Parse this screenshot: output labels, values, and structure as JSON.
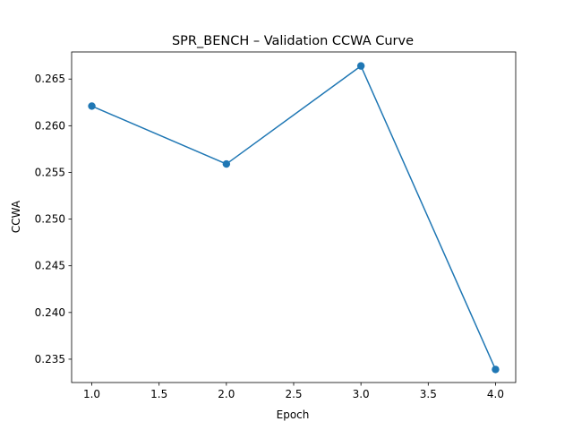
{
  "chart_data": {
    "type": "line",
    "title": "SPR_BENCH – Validation CCWA Curve",
    "xlabel": "Epoch",
    "ylabel": "CCWA",
    "xlim": [
      0.85,
      4.15
    ],
    "ylim": [
      0.2325,
      0.2679
    ],
    "x_ticks": [
      1.0,
      1.5,
      2.0,
      2.5,
      3.0,
      3.5,
      4.0
    ],
    "x_tick_labels": [
      "1.0",
      "1.5",
      "2.0",
      "2.5",
      "3.0",
      "3.5",
      "4.0"
    ],
    "y_ticks": [
      0.235,
      0.24,
      0.245,
      0.25,
      0.255,
      0.26,
      0.265
    ],
    "y_tick_labels": [
      "0.235",
      "0.240",
      "0.245",
      "0.250",
      "0.255",
      "0.260",
      "0.265"
    ],
    "grid": false,
    "series": [
      {
        "x": [
          1,
          2,
          3,
          4
        ],
        "values": [
          0.2621,
          0.2559,
          0.2664,
          0.2339
        ],
        "color": "#1f77b4",
        "marker": "circle"
      }
    ]
  }
}
